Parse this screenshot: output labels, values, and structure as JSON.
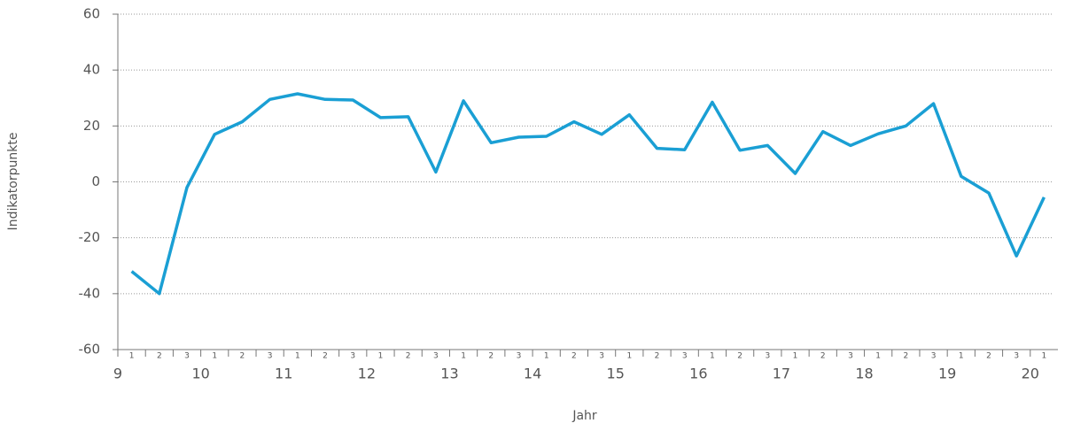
{
  "chart_data": {
    "type": "line",
    "y_label": "Indikatorpunkte",
    "x_label": "Jahr",
    "years": [
      "9",
      "10",
      "11",
      "12",
      "13",
      "14",
      "15",
      "16",
      "17",
      "18",
      "19",
      "20"
    ],
    "categories": [
      "1",
      "2",
      "3",
      "1",
      "2",
      "3",
      "1",
      "2",
      "3",
      "1",
      "2",
      "3",
      "1",
      "2",
      "3",
      "1",
      "2",
      "3",
      "1",
      "2",
      "3",
      "1",
      "2",
      "3",
      "1",
      "2",
      "3",
      "1",
      "2",
      "3",
      "1",
      "2",
      "3",
      "1"
    ],
    "series": [
      {
        "color": "#1a9fd4",
        "values": [
          -32,
          -40,
          -2,
          17,
          21.5,
          29.5,
          31.5,
          29.5,
          29.3,
          23,
          23.3,
          3.5,
          29,
          14,
          16,
          16.3,
          21.5,
          17,
          24,
          12,
          11.5,
          28.5,
          11.3,
          13,
          3,
          18,
          13,
          17.2,
          20,
          28,
          2,
          -4,
          -26.5,
          -5.5
        ]
      }
    ],
    "ylim": [
      -60,
      60
    ],
    "yticks": [
      -60,
      -40,
      -20,
      0,
      20,
      40,
      60
    ],
    "grid": true
  }
}
